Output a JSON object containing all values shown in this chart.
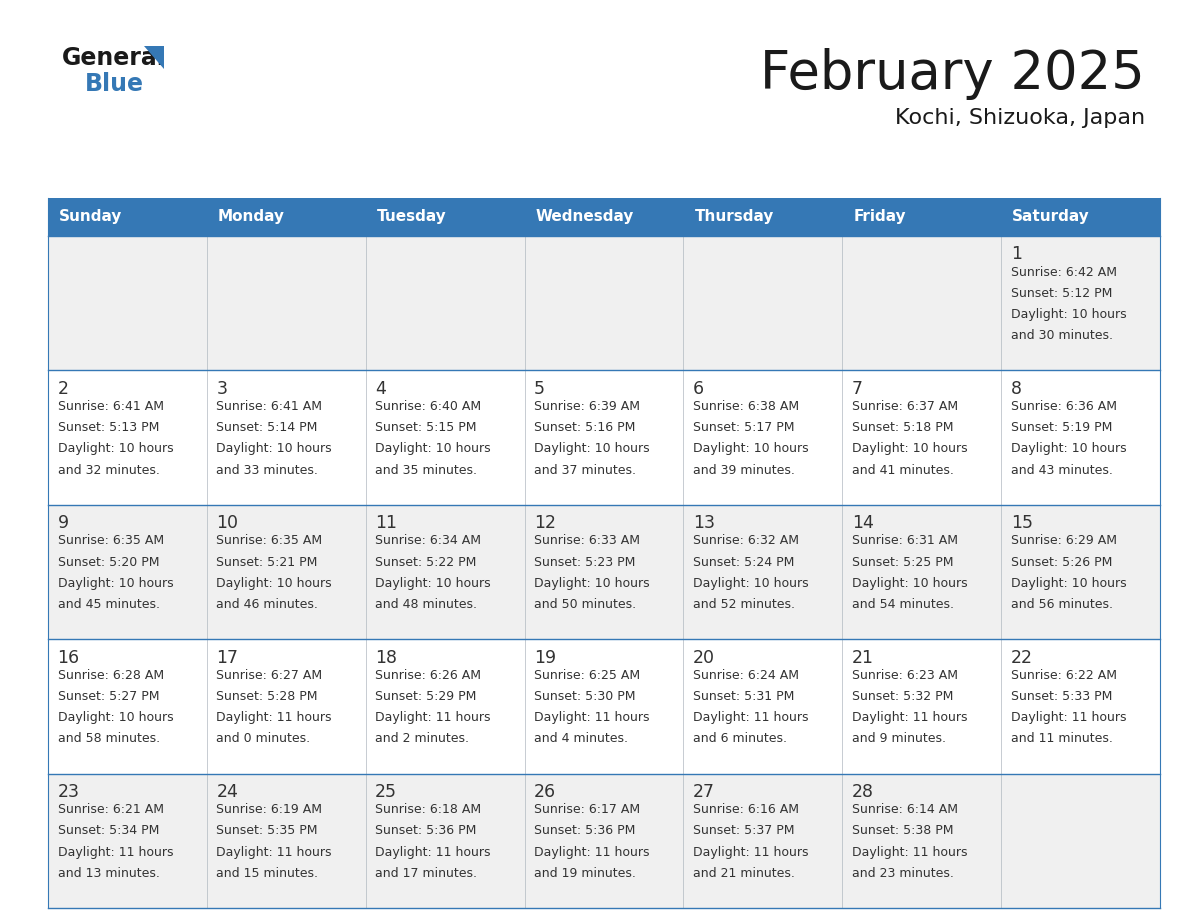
{
  "title": "February 2025",
  "subtitle": "Kochi, Shizuoka, Japan",
  "header_color": "#3578b5",
  "header_text_color": "#ffffff",
  "day_names": [
    "Sunday",
    "Monday",
    "Tuesday",
    "Wednesday",
    "Thursday",
    "Friday",
    "Saturday"
  ],
  "background_color": "#ffffff",
  "cell_bg_light": "#f0f0f0",
  "cell_bg_white": "#ffffff",
  "border_color": "#3578b5",
  "day_num_color": "#333333",
  "text_color": "#333333",
  "title_color": "#1a1a1a",
  "subtitle_color": "#1a1a1a",
  "calendar_data": [
    [
      null,
      null,
      null,
      null,
      null,
      null,
      {
        "day": 1,
        "sunrise": "6:42 AM",
        "sunset": "5:12 PM",
        "daylight": "10 hours",
        "daylight2": "and 30 minutes."
      }
    ],
    [
      {
        "day": 2,
        "sunrise": "6:41 AM",
        "sunset": "5:13 PM",
        "daylight": "10 hours",
        "daylight2": "and 32 minutes."
      },
      {
        "day": 3,
        "sunrise": "6:41 AM",
        "sunset": "5:14 PM",
        "daylight": "10 hours",
        "daylight2": "and 33 minutes."
      },
      {
        "day": 4,
        "sunrise": "6:40 AM",
        "sunset": "5:15 PM",
        "daylight": "10 hours",
        "daylight2": "and 35 minutes."
      },
      {
        "day": 5,
        "sunrise": "6:39 AM",
        "sunset": "5:16 PM",
        "daylight": "10 hours",
        "daylight2": "and 37 minutes."
      },
      {
        "day": 6,
        "sunrise": "6:38 AM",
        "sunset": "5:17 PM",
        "daylight": "10 hours",
        "daylight2": "and 39 minutes."
      },
      {
        "day": 7,
        "sunrise": "6:37 AM",
        "sunset": "5:18 PM",
        "daylight": "10 hours",
        "daylight2": "and 41 minutes."
      },
      {
        "day": 8,
        "sunrise": "6:36 AM",
        "sunset": "5:19 PM",
        "daylight": "10 hours",
        "daylight2": "and 43 minutes."
      }
    ],
    [
      {
        "day": 9,
        "sunrise": "6:35 AM",
        "sunset": "5:20 PM",
        "daylight": "10 hours",
        "daylight2": "and 45 minutes."
      },
      {
        "day": 10,
        "sunrise": "6:35 AM",
        "sunset": "5:21 PM",
        "daylight": "10 hours",
        "daylight2": "and 46 minutes."
      },
      {
        "day": 11,
        "sunrise": "6:34 AM",
        "sunset": "5:22 PM",
        "daylight": "10 hours",
        "daylight2": "and 48 minutes."
      },
      {
        "day": 12,
        "sunrise": "6:33 AM",
        "sunset": "5:23 PM",
        "daylight": "10 hours",
        "daylight2": "and 50 minutes."
      },
      {
        "day": 13,
        "sunrise": "6:32 AM",
        "sunset": "5:24 PM",
        "daylight": "10 hours",
        "daylight2": "and 52 minutes."
      },
      {
        "day": 14,
        "sunrise": "6:31 AM",
        "sunset": "5:25 PM",
        "daylight": "10 hours",
        "daylight2": "and 54 minutes."
      },
      {
        "day": 15,
        "sunrise": "6:29 AM",
        "sunset": "5:26 PM",
        "daylight": "10 hours",
        "daylight2": "and 56 minutes."
      }
    ],
    [
      {
        "day": 16,
        "sunrise": "6:28 AM",
        "sunset": "5:27 PM",
        "daylight": "10 hours",
        "daylight2": "and 58 minutes."
      },
      {
        "day": 17,
        "sunrise": "6:27 AM",
        "sunset": "5:28 PM",
        "daylight": "11 hours",
        "daylight2": "and 0 minutes."
      },
      {
        "day": 18,
        "sunrise": "6:26 AM",
        "sunset": "5:29 PM",
        "daylight": "11 hours",
        "daylight2": "and 2 minutes."
      },
      {
        "day": 19,
        "sunrise": "6:25 AM",
        "sunset": "5:30 PM",
        "daylight": "11 hours",
        "daylight2": "and 4 minutes."
      },
      {
        "day": 20,
        "sunrise": "6:24 AM",
        "sunset": "5:31 PM",
        "daylight": "11 hours",
        "daylight2": "and 6 minutes."
      },
      {
        "day": 21,
        "sunrise": "6:23 AM",
        "sunset": "5:32 PM",
        "daylight": "11 hours",
        "daylight2": "and 9 minutes."
      },
      {
        "day": 22,
        "sunrise": "6:22 AM",
        "sunset": "5:33 PM",
        "daylight": "11 hours",
        "daylight2": "and 11 minutes."
      }
    ],
    [
      {
        "day": 23,
        "sunrise": "6:21 AM",
        "sunset": "5:34 PM",
        "daylight": "11 hours",
        "daylight2": "and 13 minutes."
      },
      {
        "day": 24,
        "sunrise": "6:19 AM",
        "sunset": "5:35 PM",
        "daylight": "11 hours",
        "daylight2": "and 15 minutes."
      },
      {
        "day": 25,
        "sunrise": "6:18 AM",
        "sunset": "5:36 PM",
        "daylight": "11 hours",
        "daylight2": "and 17 minutes."
      },
      {
        "day": 26,
        "sunrise": "6:17 AM",
        "sunset": "5:36 PM",
        "daylight": "11 hours",
        "daylight2": "and 19 minutes."
      },
      {
        "day": 27,
        "sunrise": "6:16 AM",
        "sunset": "5:37 PM",
        "daylight": "11 hours",
        "daylight2": "and 21 minutes."
      },
      {
        "day": 28,
        "sunrise": "6:14 AM",
        "sunset": "5:38 PM",
        "daylight": "11 hours",
        "daylight2": "and 23 minutes."
      },
      null
    ]
  ]
}
